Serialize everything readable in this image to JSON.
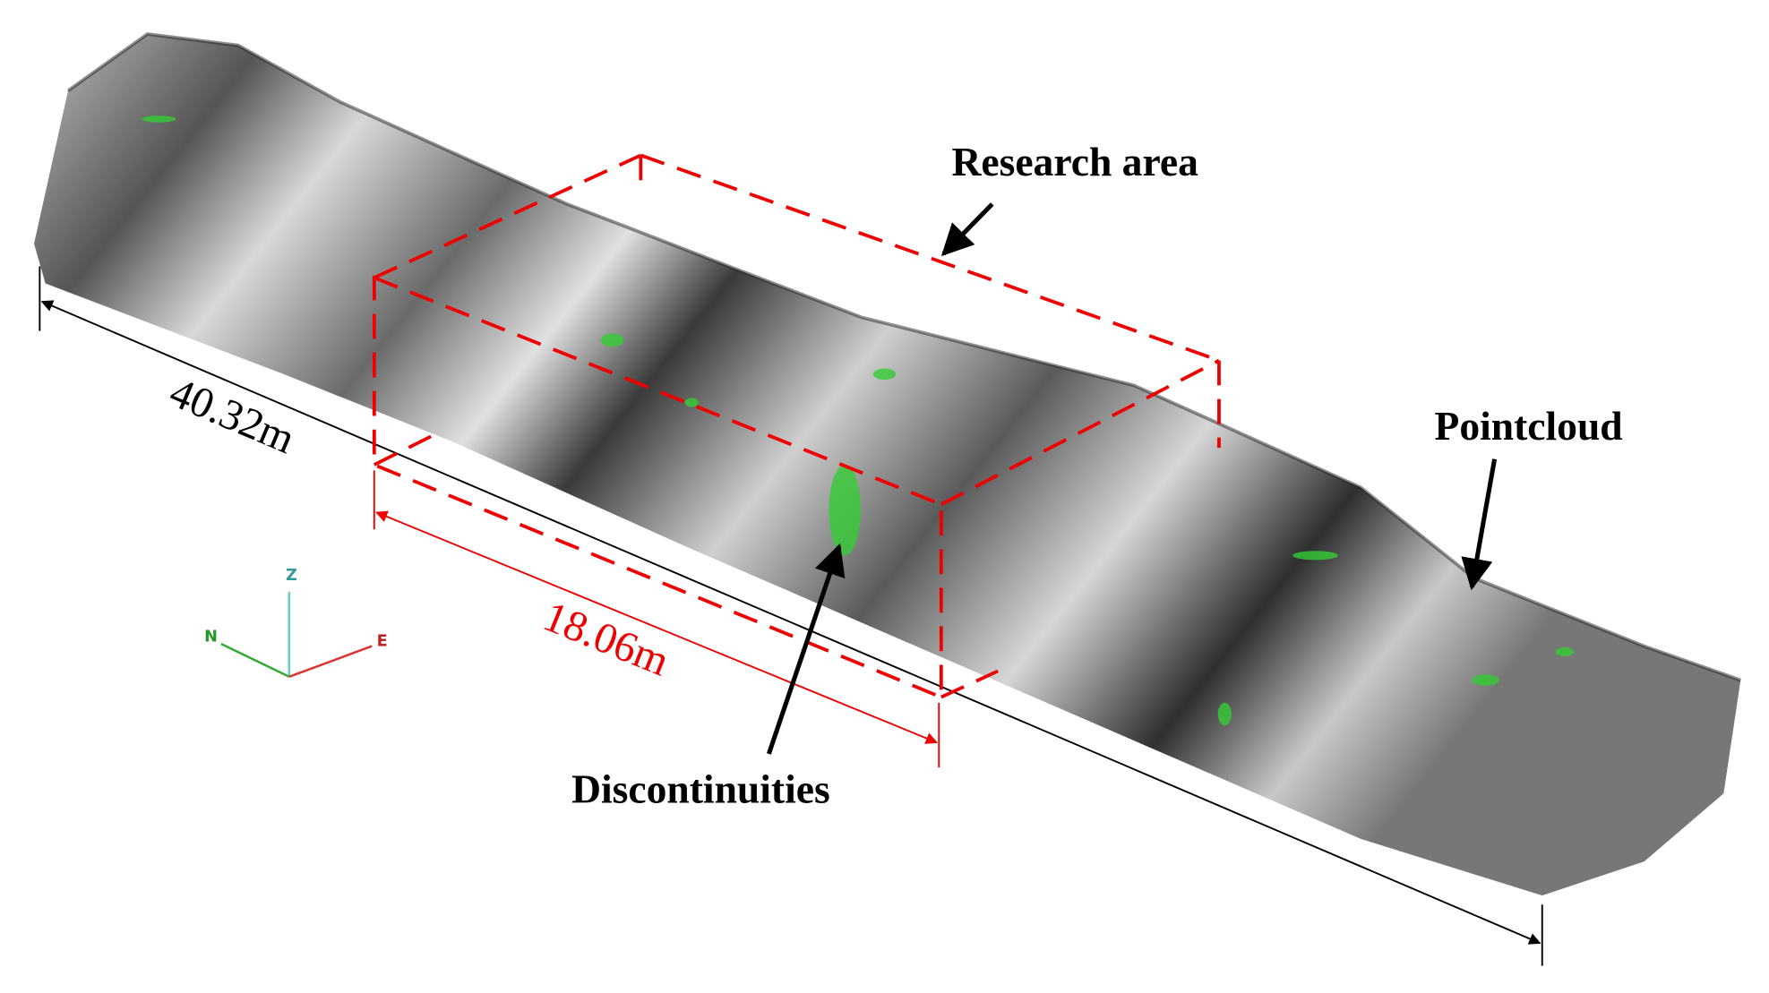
{
  "labels": {
    "research_area": "Research area",
    "pointcloud": "Pointcloud",
    "discontinuities": "Discontinuities"
  },
  "dimensions": {
    "total_length": "40.32m",
    "research_length": "18.06m"
  },
  "axes": {
    "z": "Z",
    "n": "N",
    "e": "E"
  }
}
